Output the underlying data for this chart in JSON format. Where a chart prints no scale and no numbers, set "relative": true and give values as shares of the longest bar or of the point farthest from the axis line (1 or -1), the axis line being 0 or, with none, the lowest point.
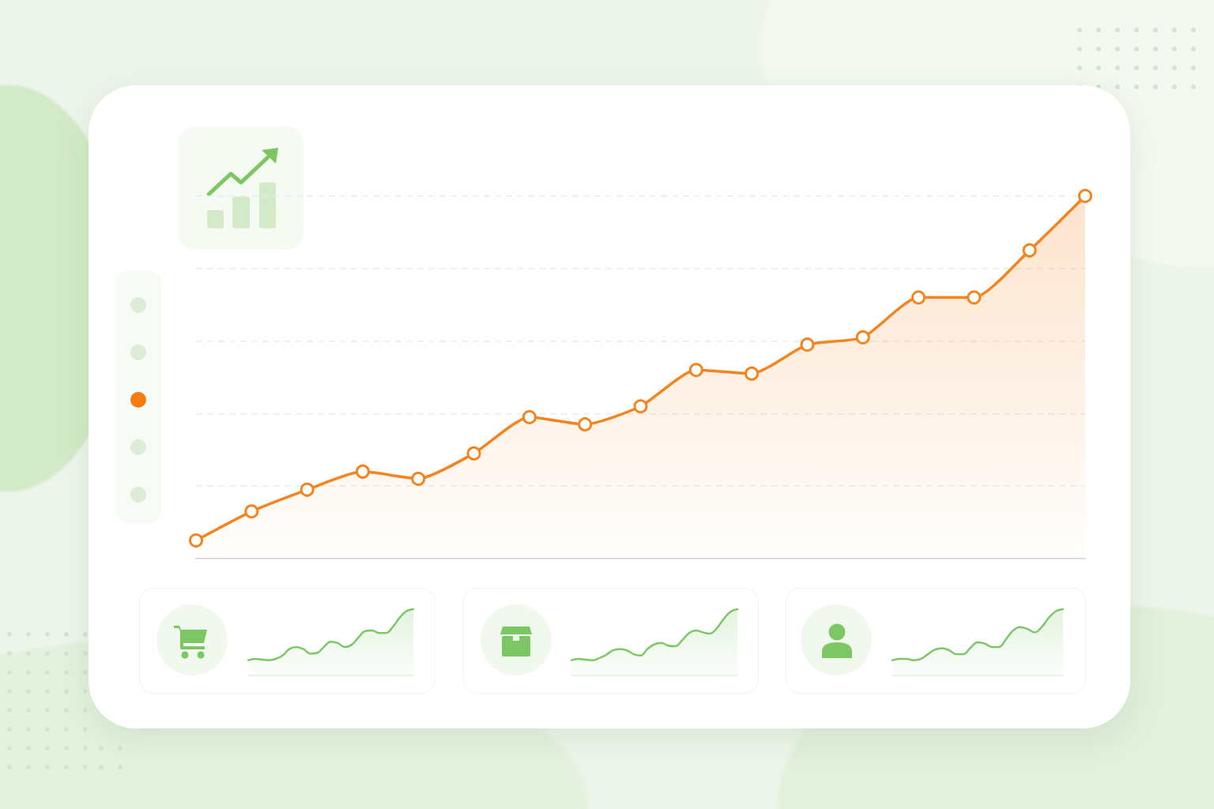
{
  "chart_data": [
    {
      "type": "area",
      "categories": [
        null,
        null,
        null,
        null,
        null,
        null,
        null,
        null,
        null,
        null,
        null,
        null,
        null,
        null,
        null,
        null,
        null
      ],
      "series": [
        {
          "color": "#f5841f",
          "values": [
            0.05,
            0.13,
            0.19,
            0.24,
            0.22,
            0.29,
            0.39,
            0.37,
            0.42,
            0.52,
            0.51,
            0.59,
            0.61,
            0.72,
            0.72,
            0.85,
            1
          ]
        }
      ],
      "relative": true,
      "marker": "circle",
      "grid": "y"
    },
    {
      "type": "area",
      "categories": [
        null,
        null,
        null,
        null,
        null,
        null,
        null,
        null,
        null,
        null,
        null,
        null,
        null,
        null,
        null,
        null,
        null,
        null,
        null,
        null,
        null,
        null,
        null,
        null,
        null
      ],
      "series": [
        {
          "color": "#7dc768",
          "values": [
            0.23,
            0.25,
            0.24,
            0.23,
            0.25,
            0.3,
            0.4,
            0.43,
            0.4,
            0.33,
            0.34,
            0.43,
            0.51,
            0.49,
            0.43,
            0.46,
            0.57,
            0.67,
            0.68,
            0.64,
            0.64,
            0.73,
            0.87,
            0.97,
            1
          ]
        }
      ],
      "relative": true,
      "marker": "none"
    },
    {
      "type": "area",
      "categories": [
        null,
        null,
        null,
        null,
        null,
        null,
        null,
        null,
        null,
        null,
        null,
        null,
        null,
        null,
        null,
        null,
        null,
        null,
        null,
        null,
        null,
        null,
        null,
        null,
        null
      ],
      "series": [
        {
          "color": "#7dc768",
          "values": [
            0.23,
            0.25,
            0.24,
            0.23,
            0.26,
            0.31,
            0.38,
            0.4,
            0.38,
            0.32,
            0.3,
            0.4,
            0.47,
            0.49,
            0.45,
            0.44,
            0.53,
            0.64,
            0.68,
            0.65,
            0.63,
            0.71,
            0.85,
            0.96,
            1
          ]
        }
      ],
      "relative": true,
      "marker": "none"
    },
    {
      "type": "area",
      "categories": [
        null,
        null,
        null,
        null,
        null,
        null,
        null,
        null,
        null,
        null,
        null,
        null,
        null,
        null,
        null,
        null,
        null,
        null,
        null,
        null,
        null,
        null,
        null,
        null,
        null
      ],
      "series": [
        {
          "color": "#7dc768",
          "values": [
            0.23,
            0.25,
            0.25,
            0.23,
            0.25,
            0.32,
            0.39,
            0.41,
            0.38,
            0.32,
            0.32,
            0.42,
            0.5,
            0.48,
            0.43,
            0.43,
            0.55,
            0.68,
            0.73,
            0.7,
            0.65,
            0.73,
            0.87,
            0.97,
            1
          ]
        }
      ],
      "relative": true,
      "marker": "none"
    }
  ]
}
